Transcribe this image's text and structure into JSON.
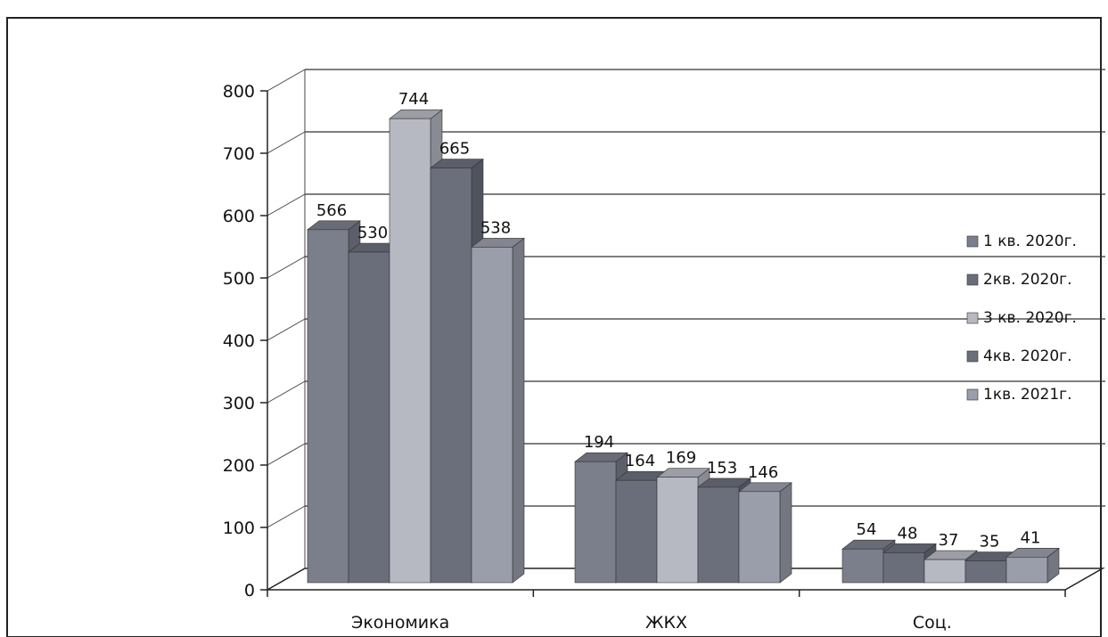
{
  "chart_data": {
    "type": "bar",
    "categories": [
      "Экономика",
      "ЖКХ",
      "Соц."
    ],
    "series": [
      {
        "name": "1 кв. 2020г.",
        "values": [
          566,
          194,
          54
        ],
        "color": "#7b7f8c"
      },
      {
        "name": "2кв. 2020г.",
        "values": [
          530,
          164,
          48
        ],
        "color": "#6a6e7a"
      },
      {
        "name": "3 кв. 2020г.",
        "values": [
          744,
          169,
          37
        ],
        "color": "#b7b9c2"
      },
      {
        "name": "4кв. 2020г.",
        "values": [
          665,
          153,
          35
        ],
        "color": "#6b6f7c"
      },
      {
        "name": "1кв. 2021г.",
        "values": [
          538,
          146,
          41
        ],
        "color": "#9a9daa"
      }
    ],
    "ylim": [
      0,
      800
    ],
    "yticks": [
      "0",
      "100",
      "200",
      "300",
      "400",
      "500",
      "600",
      "700",
      "800"
    ],
    "grid": true,
    "three_d": true,
    "legend_position": "right"
  }
}
